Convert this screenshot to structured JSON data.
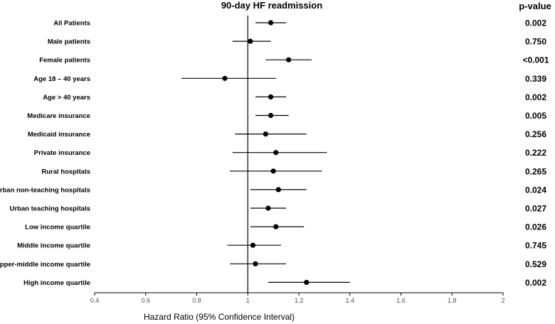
{
  "chart_data": {
    "type": "forest",
    "title": "90-day HF readmission",
    "pvalue_header": "p-value",
    "xlabel": "Hazard Ratio (95% Confidence Interval)",
    "xlim": [
      0.4,
      2.0
    ],
    "xticks": [
      0.4,
      0.6,
      0.8,
      1.0,
      1.2,
      1.4,
      1.6,
      1.8,
      2.0
    ],
    "xtick_labels": [
      "0.4",
      "0.6",
      "0.8",
      "1",
      "1.2",
      "1.4",
      "1.6",
      "1.8",
      "2"
    ],
    "reference_line": 1.0,
    "rows": [
      {
        "label": "All Patients",
        "hr": 1.09,
        "lower": 1.03,
        "upper": 1.15,
        "pvalue": "0.002"
      },
      {
        "label": "Male patients",
        "hr": 1.01,
        "lower": 0.94,
        "upper": 1.09,
        "pvalue": "0.750"
      },
      {
        "label": "Female patients",
        "hr": 1.16,
        "lower": 1.07,
        "upper": 1.25,
        "pvalue": "<0.001"
      },
      {
        "label": "Age 18 – 40 years",
        "hr": 0.91,
        "lower": 0.74,
        "upper": 1.11,
        "pvalue": "0.339"
      },
      {
        "label": "Age > 40 years",
        "hr": 1.09,
        "lower": 1.03,
        "upper": 1.15,
        "pvalue": "0.002"
      },
      {
        "label": "Medicare insurance",
        "hr": 1.09,
        "lower": 1.03,
        "upper": 1.16,
        "pvalue": "0.005"
      },
      {
        "label": "Medicaid insurance",
        "hr": 1.07,
        "lower": 0.95,
        "upper": 1.23,
        "pvalue": "0.256"
      },
      {
        "label": "Private insurance",
        "hr": 1.11,
        "lower": 0.94,
        "upper": 1.31,
        "pvalue": "0.222"
      },
      {
        "label": "Rural hospitals",
        "hr": 1.1,
        "lower": 0.93,
        "upper": 1.29,
        "pvalue": "0.265"
      },
      {
        "label": "Urban non-teaching hospitals",
        "hr": 1.12,
        "lower": 1.01,
        "upper": 1.23,
        "pvalue": "0.024"
      },
      {
        "label": "Urban teaching hospitals",
        "hr": 1.08,
        "lower": 1.01,
        "upper": 1.15,
        "pvalue": "0.027"
      },
      {
        "label": "Low income quartile",
        "hr": 1.11,
        "lower": 1.01,
        "upper": 1.22,
        "pvalue": "0.026"
      },
      {
        "label": "Middle income quartile",
        "hr": 1.02,
        "lower": 0.92,
        "upper": 1.13,
        "pvalue": "0.745"
      },
      {
        "label": "Upper-middle income quartile",
        "hr": 1.03,
        "lower": 0.93,
        "upper": 1.15,
        "pvalue": "0.529"
      },
      {
        "label": "High income quartile",
        "hr": 1.23,
        "lower": 1.08,
        "upper": 1.4,
        "pvalue": "0.002"
      }
    ],
    "colors": {
      "marker": "#000000",
      "axis": "#000000",
      "tick_label": "#555555"
    }
  }
}
